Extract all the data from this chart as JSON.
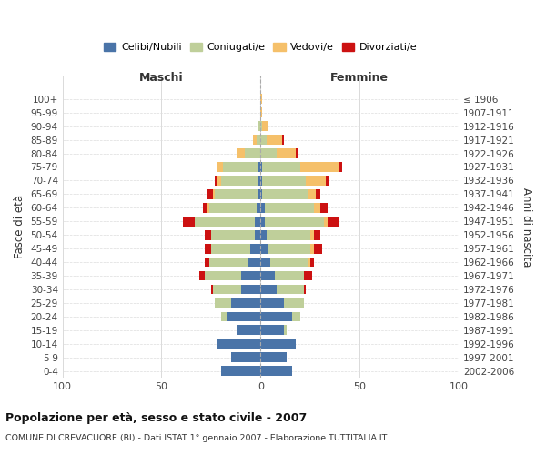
{
  "age_groups": [
    "0-4",
    "5-9",
    "10-14",
    "15-19",
    "20-24",
    "25-29",
    "30-34",
    "35-39",
    "40-44",
    "45-49",
    "50-54",
    "55-59",
    "60-64",
    "65-69",
    "70-74",
    "75-79",
    "80-84",
    "85-89",
    "90-94",
    "95-99",
    "100+"
  ],
  "birth_years": [
    "2002-2006",
    "1997-2001",
    "1992-1996",
    "1987-1991",
    "1982-1986",
    "1977-1981",
    "1972-1976",
    "1967-1971",
    "1962-1966",
    "1957-1961",
    "1952-1956",
    "1947-1951",
    "1942-1946",
    "1937-1941",
    "1932-1936",
    "1927-1931",
    "1922-1926",
    "1917-1921",
    "1912-1916",
    "1907-1911",
    "≤ 1906"
  ],
  "colors": {
    "celibi": "#4a74a8",
    "coniugati": "#bfcf9a",
    "vedovi": "#f5c06a",
    "divorziati": "#cc1111"
  },
  "maschi": {
    "celibi": [
      20,
      15,
      22,
      12,
      17,
      15,
      10,
      10,
      6,
      5,
      3,
      3,
      2,
      1,
      1,
      1,
      0,
      0,
      0,
      0,
      0
    ],
    "coniugati": [
      0,
      0,
      0,
      0,
      3,
      8,
      14,
      18,
      20,
      20,
      22,
      30,
      24,
      22,
      19,
      18,
      8,
      2,
      1,
      0,
      0
    ],
    "vedovi": [
      0,
      0,
      0,
      0,
      0,
      0,
      0,
      0,
      0,
      0,
      0,
      0,
      1,
      1,
      2,
      3,
      4,
      2,
      0,
      0,
      0
    ],
    "divorziati": [
      0,
      0,
      0,
      0,
      0,
      0,
      1,
      3,
      2,
      3,
      3,
      6,
      2,
      3,
      1,
      0,
      0,
      0,
      0,
      0,
      0
    ]
  },
  "femmine": {
    "celibi": [
      16,
      13,
      18,
      12,
      16,
      12,
      8,
      7,
      5,
      4,
      3,
      2,
      2,
      1,
      1,
      1,
      0,
      0,
      0,
      0,
      0
    ],
    "coniugati": [
      0,
      0,
      0,
      1,
      4,
      10,
      14,
      15,
      19,
      21,
      22,
      30,
      25,
      23,
      22,
      19,
      8,
      3,
      1,
      0,
      0
    ],
    "vedovi": [
      0,
      0,
      0,
      0,
      0,
      0,
      0,
      0,
      1,
      2,
      2,
      2,
      3,
      4,
      10,
      20,
      10,
      8,
      3,
      1,
      1
    ],
    "divorziati": [
      0,
      0,
      0,
      0,
      0,
      0,
      1,
      4,
      2,
      4,
      3,
      6,
      4,
      2,
      2,
      1,
      1,
      1,
      0,
      0,
      0
    ]
  },
  "xlim": 100,
  "title": "Popolazione per età, sesso e stato civile - 2007",
  "subtitle": "COMUNE DI CREVACUORE (BI) - Dati ISTAT 1° gennaio 2007 - Elaborazione TUTTITALIA.IT",
  "ylabel_left": "Fasce di età",
  "ylabel_right": "Anni di nascita",
  "header_left": "Maschi",
  "header_right": "Femmine",
  "legend_labels": [
    "Celibi/Nubili",
    "Coniugati/e",
    "Vedovi/e",
    "Divorziati/e"
  ],
  "background_color": "#ffffff"
}
